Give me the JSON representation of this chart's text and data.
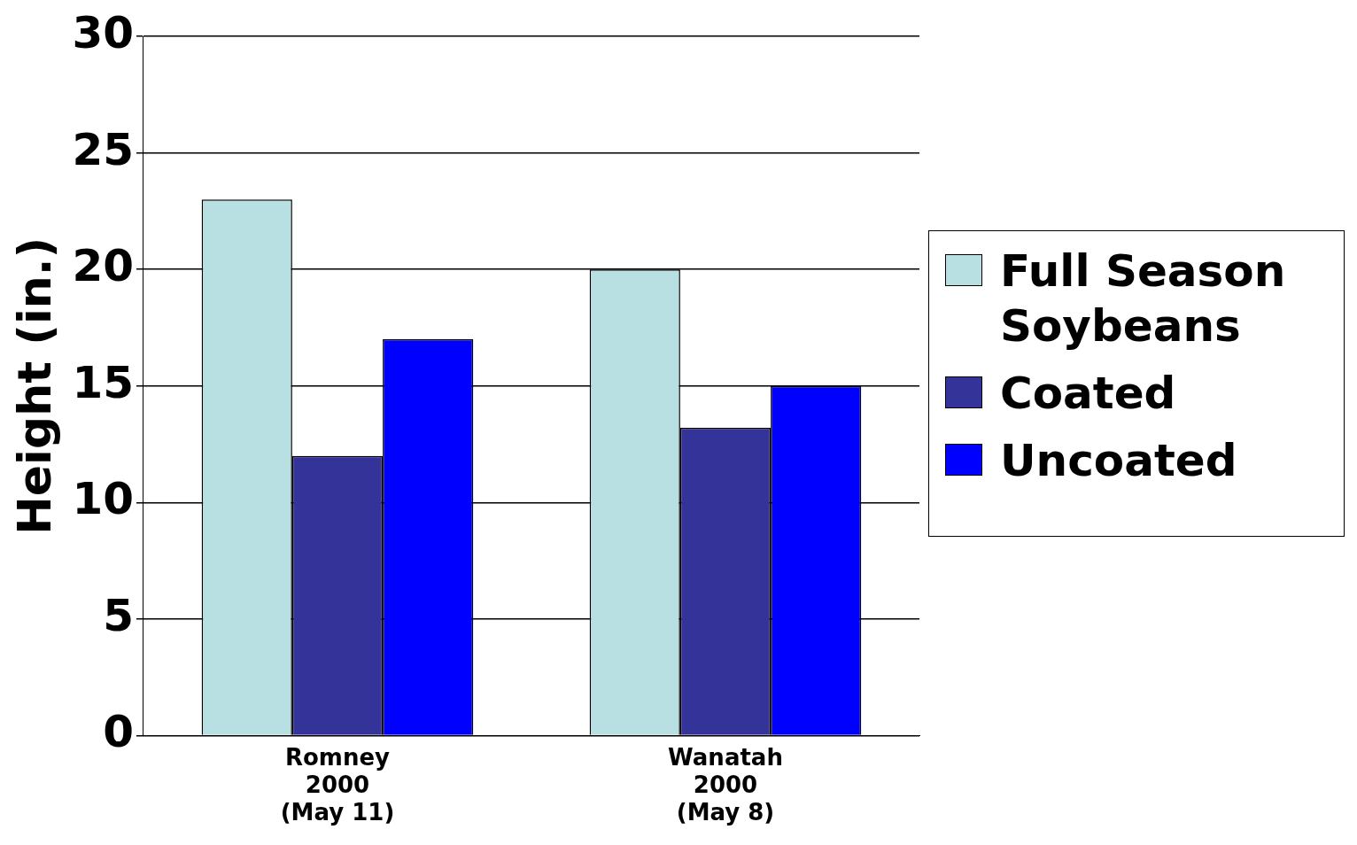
{
  "chart_data": {
    "type": "bar",
    "ylabel": "Height (in.)",
    "categories": [
      "Romney\n2000\n(May 11)",
      "Wanatah\n2000\n(May 8)"
    ],
    "series": [
      {
        "name": "Full Season Soybeans",
        "color": "#b8e0e3",
        "values": [
          23,
          20
        ]
      },
      {
        "name": "Coated",
        "color": "#333399",
        "values": [
          12,
          13.2
        ]
      },
      {
        "name": "Uncoated",
        "color": "#0000ff",
        "values": [
          17,
          15
        ]
      }
    ],
    "ylim": [
      0,
      30
    ],
    "yticks": [
      0,
      5,
      10,
      15,
      20,
      25,
      30
    ],
    "grid": "y",
    "legend": "right"
  }
}
